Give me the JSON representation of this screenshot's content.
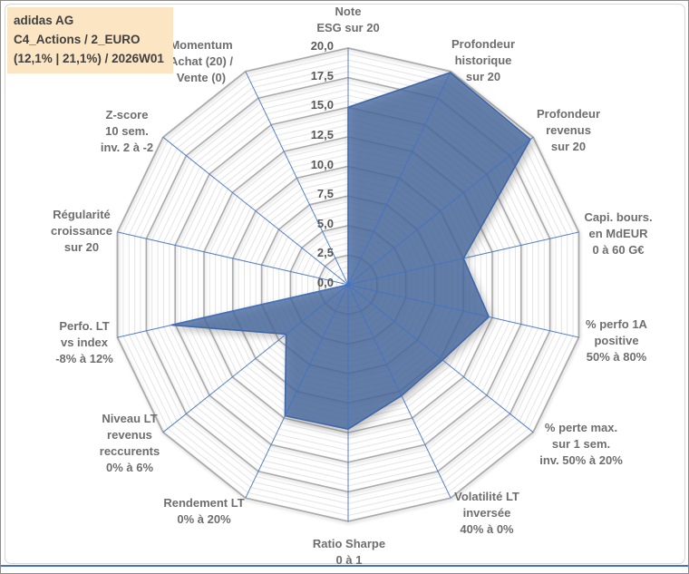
{
  "title_box": {
    "line1": "adidas AG",
    "line2": "C4_Actions / 2_EURO",
    "line3": "(12,1% | 21,1%) / 2026W01"
  },
  "chart_data": {
    "type": "radar",
    "categories": [
      [
        "Note",
        "ESG sur 20"
      ],
      [
        "Profondeur",
        "historique",
        "sur 20"
      ],
      [
        "Profondeur",
        "revenus",
        "sur 20"
      ],
      [
        "Capi. bours.",
        "en MdEUR",
        "0 à 60 G€"
      ],
      [
        "% perfo 1A",
        "positive",
        "50% à 80%"
      ],
      [
        "% perte max.",
        "sur 1 sem.",
        "inv. 50% à 20%"
      ],
      [
        "Volatilité LT",
        "inversée",
        "40% à 0%"
      ],
      [
        "Ratio Sharpe",
        "0 à 1"
      ],
      [
        "Rendement LT",
        "0% à 20%"
      ],
      [
        "Niveau LT",
        "revenus",
        "reccurents",
        "0% à 6%"
      ],
      [
        "Perfo. LT",
        "vs index",
        "-8% à 12%"
      ],
      [
        "Régularité",
        "croissance",
        "sur 20"
      ],
      [
        "Z-score",
        "10 sem.",
        "inv. 2 à -2"
      ],
      [
        "Momentum",
        "Achat (20) /",
        "Vente (0)"
      ]
    ],
    "series": [
      {
        "name": "adidas AG",
        "values": [
          15.0,
          19.9,
          19.7,
          10.0,
          12.2,
          10.2,
          10.4,
          12.2,
          12.3,
          6.7,
          15.3,
          0,
          0,
          0
        ]
      }
    ],
    "radial_axis": {
      "min": 0,
      "max": 20,
      "major_step": 2.5,
      "minor_step": 0.5,
      "tick_labels": [
        "20,0",
        "17,5",
        "15,0",
        "12,5",
        "10,0",
        "7,5",
        "5,0",
        "2,5",
        "0,0"
      ]
    },
    "grid": true,
    "legend": false
  },
  "colors": {
    "series_fill": "#44689F",
    "series_fill_opacity": 0.78,
    "series_line": "#3E66A8",
    "spoke": "#4472C4",
    "grid_major": "#ABABAB",
    "grid_minor": "#E4E4E4",
    "tick_label": "#595959",
    "category_label": "#6E6E6E",
    "title_bg": "#FBE5C3",
    "title_text": "#404040",
    "divider": "#4472C4",
    "frame_border": "#D8D8D8",
    "outer_border": "#8C8C8C"
  }
}
